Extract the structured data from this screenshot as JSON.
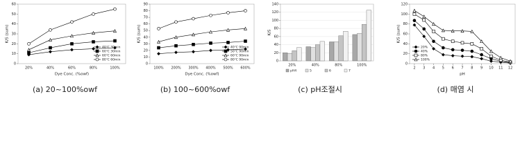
{
  "chart_data": [
    {
      "type": "line",
      "caption": "(a) 20~100%owf",
      "ylabel": "K/S (sum)",
      "xlabel": "Dye Conc. (%owf)",
      "categories": [
        "20%",
        "40%",
        "60%",
        "80%",
        "100%"
      ],
      "ylim": [
        0,
        60
      ],
      "yticks": [
        0,
        10,
        20,
        30,
        40,
        50,
        60
      ],
      "legend": "lower right",
      "series": [
        {
          "name": "40℃ 30min",
          "color": "#000000",
          "marker": "diamond",
          "values": [
            9,
            12,
            14,
            15,
            16
          ]
        },
        {
          "name": "60℃ 30min",
          "color": "#000000",
          "marker": "square",
          "values": [
            11,
            16,
            20,
            22,
            23
          ]
        },
        {
          "name": "60℃ 60min",
          "color": "#000000",
          "marker": "triangle-open",
          "values": [
            14,
            24,
            28,
            31,
            33
          ]
        },
        {
          "name": "80℃ 60min",
          "color": "#000000",
          "marker": "circle-open",
          "values": [
            20,
            34,
            42,
            50,
            55
          ]
        }
      ]
    },
    {
      "type": "line",
      "caption": "(b) 100~600%owf",
      "ylabel": "K/S (sum)",
      "xlabel": "Dye Conc. (%owf)",
      "categories": [
        "100%",
        "200%",
        "300%",
        "400%",
        "500%",
        "600%"
      ],
      "ylim": [
        0,
        90
      ],
      "yticks": [
        0,
        10,
        20,
        30,
        40,
        50,
        60,
        70,
        80,
        90
      ],
      "legend": "lower right",
      "series": [
        {
          "name": "40℃ 90min",
          "color": "#000000",
          "marker": "diamond",
          "values": [
            15,
            17,
            18,
            20,
            21,
            22
          ]
        },
        {
          "name": "50℃ 90min",
          "color": "#000000",
          "marker": "square",
          "values": [
            24,
            27,
            29,
            31,
            32,
            34
          ]
        },
        {
          "name": "60℃ 90min",
          "color": "#000000",
          "marker": "triangle-open",
          "values": [
            33,
            40,
            44,
            48,
            51,
            53
          ]
        },
        {
          "name": "80℃ 90min",
          "color": "#000000",
          "marker": "circle-open",
          "values": [
            53,
            63,
            68,
            73,
            77,
            80
          ]
        }
      ]
    },
    {
      "type": "bar",
      "caption": "(c) pH조절시",
      "ylabel": "K/S",
      "categories": [
        "20%",
        "40%",
        "80%",
        "100%"
      ],
      "ylim": [
        0,
        140
      ],
      "yticks": [
        0,
        20,
        40,
        60,
        80,
        100,
        120,
        140
      ],
      "legend": "bottom",
      "series": [
        {
          "name": "pH4",
          "color": "#a8a8a8",
          "values": [
            20,
            35,
            47,
            65
          ]
        },
        {
          "name": "5",
          "color": "#e0e0e0",
          "values": [
            18,
            33,
            47,
            68
          ]
        },
        {
          "name": "6",
          "color": "#c4c4c4",
          "values": [
            25,
            40,
            62,
            90
          ]
        },
        {
          "name": "7",
          "color": "#f2f2f2",
          "values": [
            33,
            48,
            73,
            125
          ]
        }
      ]
    },
    {
      "type": "line",
      "caption": "(d) 매염 시",
      "ylabel": "K/S (sum)",
      "xlabel": "pH",
      "x": [
        2,
        3,
        4,
        5,
        6,
        7,
        8,
        9,
        10,
        11,
        12
      ],
      "xlim": [
        1.5,
        12.5
      ],
      "xticks": [
        2,
        3,
        4,
        5,
        6,
        7,
        8,
        9,
        10,
        11,
        12
      ],
      "ylim": [
        0,
        120
      ],
      "yticks": [
        0,
        20,
        40,
        60,
        80,
        100,
        120
      ],
      "legend": "lower left",
      "series": [
        {
          "name": "20%",
          "color": "#000000",
          "marker": "diamond",
          "values": [
            78,
            55,
            30,
            18,
            16,
            15,
            14,
            10,
            5,
            3,
            1
          ]
        },
        {
          "name": "40%",
          "color": "#000000",
          "marker": "circle",
          "values": [
            87,
            70,
            45,
            32,
            28,
            27,
            25,
            18,
            10,
            5,
            2
          ]
        },
        {
          "name": "80%",
          "color": "#000000",
          "marker": "square-open",
          "values": [
            100,
            88,
            65,
            50,
            45,
            42,
            40,
            30,
            15,
            7,
            3
          ]
        },
        {
          "name": "100%",
          "color": "#000000",
          "marker": "triangle-open",
          "values": [
            107,
            95,
            80,
            67,
            66,
            66,
            65,
            45,
            25,
            12,
            5
          ]
        }
      ]
    }
  ]
}
